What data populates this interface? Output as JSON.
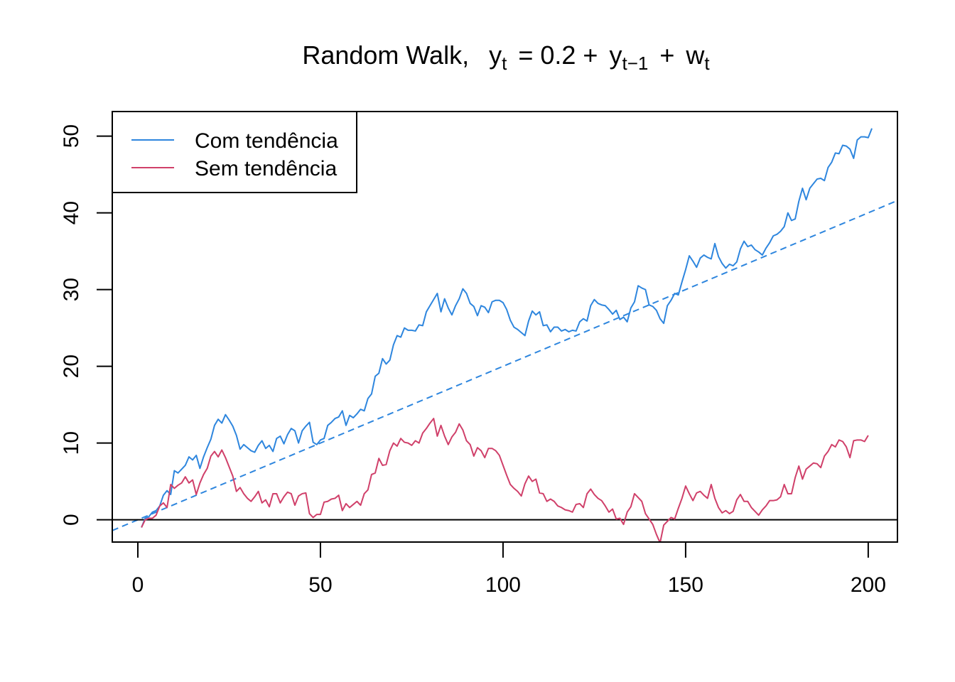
{
  "chart_data": {
    "type": "line",
    "title": {
      "prefix": "Random Walk,",
      "y": "y",
      "sub_t": "t",
      "eq": "= 0.2 +",
      "y2": "y",
      "sub_t1": "t−1",
      "plus": "+",
      "w": "w",
      "sub_t2": "t"
    },
    "xlabel": "",
    "ylabel": "",
    "xlim": [
      -7,
      208
    ],
    "ylim": [
      -2.9,
      53.2
    ],
    "x_ticks": [
      0,
      50,
      100,
      150,
      200
    ],
    "y_ticks": [
      0,
      10,
      20,
      30,
      40,
      50
    ],
    "legend_position": "top-left",
    "grid": false,
    "series": [
      {
        "name": "Com tendência",
        "color": "#2E86DE",
        "x_start": 1,
        "values": [
          -1.0,
          0.2,
          0.4,
          1.0,
          1.2,
          1.8,
          3.2,
          3.8,
          3.3,
          6.4,
          6.1,
          6.6,
          7.1,
          8.2,
          7.8,
          8.4,
          6.7,
          8.2,
          9.4,
          10.5,
          12.3,
          13.1,
          12.6,
          13.7,
          13.0,
          12.2,
          11.0,
          9.2,
          9.8,
          9.4,
          9.0,
          8.8,
          9.7,
          10.3,
          9.3,
          9.7,
          8.9,
          10.6,
          10.9,
          9.9,
          11.1,
          11.9,
          11.6,
          10.0,
          11.6,
          12.2,
          12.7,
          10.1,
          9.8,
          10.4,
          10.6,
          12.3,
          12.7,
          13.2,
          13.4,
          14.2,
          12.3,
          13.6,
          13.3,
          13.8,
          14.4,
          14.2,
          15.8,
          16.4,
          18.7,
          19.1,
          21.0,
          20.3,
          20.8,
          22.8,
          24.0,
          23.8,
          25.0,
          24.7,
          24.7,
          24.6,
          25.4,
          25.3,
          27.1,
          27.9,
          28.7,
          29.5,
          27.1,
          28.8,
          27.6,
          26.7,
          27.9,
          28.8,
          30.1,
          29.5,
          28.2,
          27.8,
          26.6,
          27.9,
          27.7,
          27.0,
          28.4,
          28.6,
          28.6,
          28.3,
          27.4,
          26.0,
          25.1,
          24.8,
          24.4,
          24.0,
          25.9,
          27.2,
          26.7,
          27.1,
          25.3,
          25.4,
          24.5,
          25.1,
          25.1,
          24.6,
          24.8,
          24.5,
          24.7,
          24.6,
          25.8,
          26.2,
          25.9,
          27.9,
          28.7,
          28.2,
          28.0,
          27.9,
          27.4,
          26.8,
          27.3,
          26.1,
          26.4,
          25.8,
          27.6,
          28.4,
          30.5,
          30.2,
          30.0,
          28.0,
          27.8,
          27.3,
          26.2,
          25.6,
          27.9,
          28.6,
          29.5,
          29.3,
          31.0,
          32.6,
          34.4,
          33.7,
          32.9,
          34.1,
          34.5,
          34.2,
          34.0,
          36.0,
          34.3,
          33.4,
          32.8,
          33.3,
          33.1,
          33.6,
          35.3,
          36.3,
          35.6,
          35.8,
          35.2,
          34.9,
          34.5,
          35.4,
          36.1,
          37.0,
          37.2,
          37.6,
          38.2,
          40.0,
          39.0,
          39.2,
          41.5,
          43.2,
          41.7,
          43.2,
          43.8,
          44.4,
          44.5,
          44.2,
          45.9,
          46.6,
          47.8,
          47.7,
          48.8,
          48.7,
          48.3,
          47.1,
          49.5,
          49.9,
          49.9,
          49.8,
          51.0
        ]
      },
      {
        "name": "Sem tendência",
        "color": "#D0406A",
        "x_start": 1,
        "values": [
          -1.0,
          0.0,
          0.2,
          0.2,
          0.6,
          1.8,
          2.2,
          1.6,
          4.6,
          4.1,
          4.5,
          4.8,
          5.6,
          4.8,
          5.2,
          3.3,
          4.8,
          5.9,
          6.7,
          8.3,
          8.9,
          8.2,
          9.1,
          8.1,
          6.9,
          5.7,
          3.7,
          4.2,
          3.4,
          2.8,
          2.4,
          3.0,
          3.7,
          2.2,
          2.6,
          1.7,
          3.4,
          3.4,
          2.2,
          3.0,
          3.6,
          3.4,
          1.9,
          3.1,
          3.4,
          3.5,
          0.8,
          0.3,
          0.7,
          0.7,
          2.3,
          2.4,
          2.7,
          2.8,
          3.2,
          1.2,
          2.1,
          1.6,
          2.0,
          2.4,
          1.9,
          3.4,
          3.9,
          5.9,
          6.1,
          8.0,
          7.1,
          7.2,
          9.0,
          10.0,
          9.6,
          10.6,
          10.1,
          10.0,
          9.7,
          10.3,
          10.0,
          11.3,
          11.9,
          12.6,
          13.2,
          10.9,
          12.3,
          10.9,
          9.8,
          10.8,
          11.4,
          12.5,
          11.7,
          10.3,
          9.8,
          8.3,
          9.4,
          9.0,
          8.1,
          9.3,
          9.3,
          9.0,
          8.4,
          7.1,
          5.8,
          4.6,
          4.1,
          3.7,
          3.1,
          4.7,
          5.7,
          5.0,
          5.3,
          3.5,
          3.4,
          2.4,
          2.7,
          2.4,
          1.8,
          1.6,
          1.3,
          1.2,
          1.0,
          2.0,
          2.1,
          1.6,
          3.4,
          4.0,
          3.3,
          2.8,
          2.5,
          1.8,
          1.0,
          1.4,
          0.1,
          0.2,
          -0.6,
          1.0,
          1.7,
          3.4,
          2.9,
          2.4,
          0.8,
          0.1,
          -0.6,
          -1.9,
          -3.0,
          -0.7,
          -0.2,
          0.3,
          0.1,
          1.5,
          2.8,
          4.4,
          3.4,
          2.5,
          3.5,
          3.7,
          3.2,
          2.8,
          4.6,
          2.8,
          1.6,
          0.9,
          1.2,
          0.8,
          1.1,
          2.6,
          3.3,
          2.4,
          2.4,
          1.6,
          1.1,
          0.6,
          1.3,
          1.8,
          2.5,
          2.5,
          2.6,
          3.0,
          4.6,
          3.4,
          3.4,
          5.5,
          7.0,
          5.3,
          6.6,
          7.0,
          7.4,
          7.3,
          6.8,
          8.3,
          8.9,
          9.8,
          9.5,
          10.4,
          10.2,
          9.5,
          8.1,
          10.3,
          10.4,
          10.4,
          10.2,
          11.0
        ]
      },
      {
        "name": "",
        "style": "dashed",
        "color": "#2E86DE",
        "intercept": 0,
        "slope": 0.2
      },
      {
        "name": "",
        "style": "solid",
        "color": "#000000",
        "intercept": 0,
        "slope": 0
      }
    ]
  }
}
